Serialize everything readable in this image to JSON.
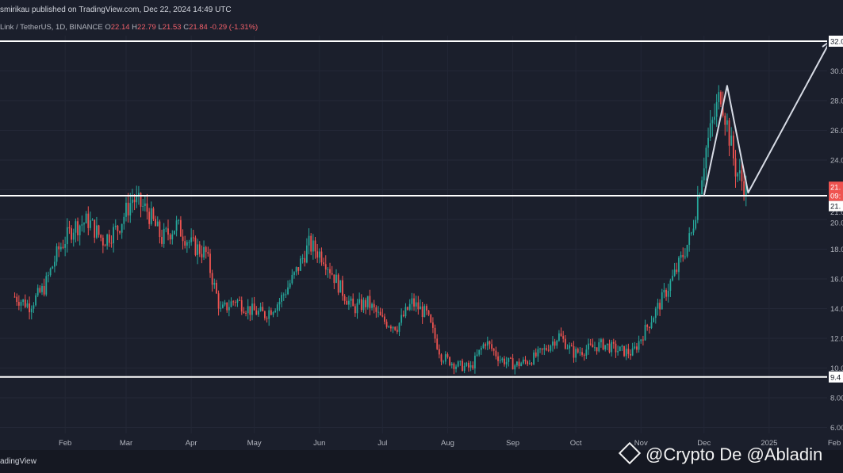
{
  "header": {
    "publish_line": "smirikau published on TradingView.com, Dec 22, 2024 14:49 UTC",
    "symbol": "Link / TetherUS, 1D, BINANCE",
    "o_label": "O",
    "o_value": "22.14",
    "h_label": "H",
    "h_value": "22.79",
    "l_label": "L",
    "l_value": "21.53",
    "c_label": "C",
    "c_value": "21.84",
    "change": "-0.29 (-1.31%)"
  },
  "footer": {
    "brand": "adingView",
    "watermark": "@Crypto De @Abladin"
  },
  "colors": {
    "background": "#1b1f2c",
    "up": "#26a69a",
    "down": "#ef5350",
    "level_line": "#ffffff",
    "arrow": "#d7dbe5"
  },
  "chart_data": {
    "type": "candlestick",
    "title": "",
    "x_ticks": [
      "Feb",
      "Mar",
      "Apr",
      "May",
      "Jun",
      "Jul",
      "Aug",
      "Sep",
      "Oct",
      "Nov",
      "Dec",
      "2025",
      "Feb"
    ],
    "y_ticks": [
      "32.0",
      "30.0",
      "28.0",
      "26.0",
      "24.0",
      "21.0",
      "20.0",
      "18.0",
      "16.0",
      "14.0",
      "12.0",
      "10.0",
      "9.4",
      "8.00",
      "6.00"
    ],
    "ylim": [
      6,
      33.5
    ],
    "horizontal_levels": [
      32.0,
      21.6,
      9.4
    ],
    "price_badges": [
      {
        "label": "21.",
        "color": "#ef5350"
      },
      {
        "label": "09:",
        "color": "#ef5350"
      },
      {
        "label": "21.",
        "color": "#ffffff"
      }
    ],
    "projection_path": [
      {
        "date": "2024-12-01",
        "price": 21.6
      },
      {
        "date": "2024-12-12",
        "price": 29.0
      },
      {
        "date": "2024-12-22",
        "price": 21.8
      },
      {
        "date": "2025-01-30",
        "price": 32.0
      }
    ],
    "candles_weekly_close": [
      {
        "date": "2024-01-08",
        "close": 14.8
      },
      {
        "date": "2024-01-15",
        "close": 14.2
      },
      {
        "date": "2024-01-22",
        "close": 15.4
      },
      {
        "date": "2024-01-29",
        "close": 18.0
      },
      {
        "date": "2024-02-05",
        "close": 19.5
      },
      {
        "date": "2024-02-12",
        "close": 19.9
      },
      {
        "date": "2024-02-19",
        "close": 18.6
      },
      {
        "date": "2024-02-26",
        "close": 19.4
      },
      {
        "date": "2024-03-04",
        "close": 21.4
      },
      {
        "date": "2024-03-11",
        "close": 20.6
      },
      {
        "date": "2024-03-18",
        "close": 18.7
      },
      {
        "date": "2024-03-25",
        "close": 19.6
      },
      {
        "date": "2024-04-01",
        "close": 18.3
      },
      {
        "date": "2024-04-08",
        "close": 17.7
      },
      {
        "date": "2024-04-15",
        "close": 13.8
      },
      {
        "date": "2024-04-22",
        "close": 14.6
      },
      {
        "date": "2024-04-29",
        "close": 13.9
      },
      {
        "date": "2024-05-06",
        "close": 13.6
      },
      {
        "date": "2024-05-13",
        "close": 14.5
      },
      {
        "date": "2024-05-20",
        "close": 16.2
      },
      {
        "date": "2024-05-27",
        "close": 18.3
      },
      {
        "date": "2024-06-03",
        "close": 17.5
      },
      {
        "date": "2024-06-10",
        "close": 15.6
      },
      {
        "date": "2024-06-17",
        "close": 14.0
      },
      {
        "date": "2024-06-24",
        "close": 14.4
      },
      {
        "date": "2024-07-01",
        "close": 13.2
      },
      {
        "date": "2024-07-08",
        "close": 12.8
      },
      {
        "date": "2024-07-15",
        "close": 14.4
      },
      {
        "date": "2024-07-22",
        "close": 13.6
      },
      {
        "date": "2024-07-29",
        "close": 10.8
      },
      {
        "date": "2024-08-05",
        "close": 10.2
      },
      {
        "date": "2024-08-12",
        "close": 10.0
      },
      {
        "date": "2024-08-19",
        "close": 11.8
      },
      {
        "date": "2024-08-26",
        "close": 10.6
      },
      {
        "date": "2024-09-02",
        "close": 10.2
      },
      {
        "date": "2024-09-09",
        "close": 10.5
      },
      {
        "date": "2024-09-16",
        "close": 11.2
      },
      {
        "date": "2024-09-23",
        "close": 12.2
      },
      {
        "date": "2024-09-30",
        "close": 11.0
      },
      {
        "date": "2024-10-07",
        "close": 11.3
      },
      {
        "date": "2024-10-14",
        "close": 11.6
      },
      {
        "date": "2024-10-21",
        "close": 11.2
      },
      {
        "date": "2024-10-28",
        "close": 11.0
      },
      {
        "date": "2024-11-04",
        "close": 12.8
      },
      {
        "date": "2024-11-11",
        "close": 14.6
      },
      {
        "date": "2024-11-18",
        "close": 16.6
      },
      {
        "date": "2024-11-25",
        "close": 19.0
      },
      {
        "date": "2024-12-02",
        "close": 24.8
      },
      {
        "date": "2024-12-09",
        "close": 28.6
      },
      {
        "date": "2024-12-16",
        "close": 23.4
      },
      {
        "date": "2024-12-22",
        "close": 21.8
      }
    ]
  }
}
